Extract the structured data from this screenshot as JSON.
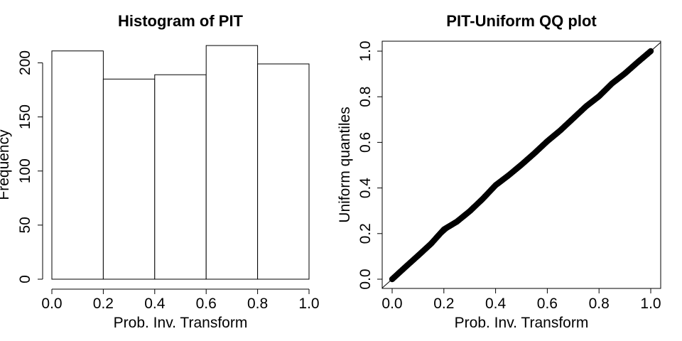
{
  "chart_data": [
    {
      "type": "bar",
      "title": "Histogram of PIT",
      "xlabel": "Prob. Inv. Transform",
      "ylabel": "Frequency",
      "bins": [
        [
          0.0,
          0.2
        ],
        [
          0.2,
          0.4
        ],
        [
          0.4,
          0.6
        ],
        [
          0.6,
          0.8
        ],
        [
          0.8,
          1.0
        ]
      ],
      "values": [
        211,
        185,
        189,
        216,
        199
      ],
      "xlim": [
        0,
        1
      ],
      "ylim": [
        0,
        220
      ],
      "xticks": [
        "0.0",
        "0.2",
        "0.4",
        "0.6",
        "0.8",
        "1.0"
      ],
      "yticks": [
        "0",
        "50",
        "100",
        "150",
        "200"
      ],
      "grid": false
    },
    {
      "type": "scatter",
      "title": "PIT-Uniform QQ plot",
      "xlabel": "Prob. Inv. Transform",
      "ylabel": "Uniform quantiles",
      "xlim": [
        0,
        1
      ],
      "ylim": [
        0,
        1
      ],
      "xticks": [
        "0.0",
        "0.2",
        "0.4",
        "0.6",
        "0.8",
        "1.0"
      ],
      "yticks": [
        "0.0",
        "0.2",
        "0.4",
        "0.6",
        "0.8",
        "1.0"
      ],
      "reference_line": "y = x",
      "grid": false,
      "x": [
        0.0,
        0.05,
        0.1,
        0.15,
        0.2,
        0.25,
        0.3,
        0.35,
        0.4,
        0.45,
        0.5,
        0.55,
        0.6,
        0.65,
        0.7,
        0.75,
        0.8,
        0.85,
        0.9,
        0.95,
        1.0
      ],
      "y": [
        0.0,
        0.052,
        0.103,
        0.155,
        0.218,
        0.252,
        0.298,
        0.352,
        0.412,
        0.455,
        0.502,
        0.552,
        0.605,
        0.652,
        0.705,
        0.758,
        0.802,
        0.858,
        0.902,
        0.952,
        1.0
      ]
    }
  ]
}
